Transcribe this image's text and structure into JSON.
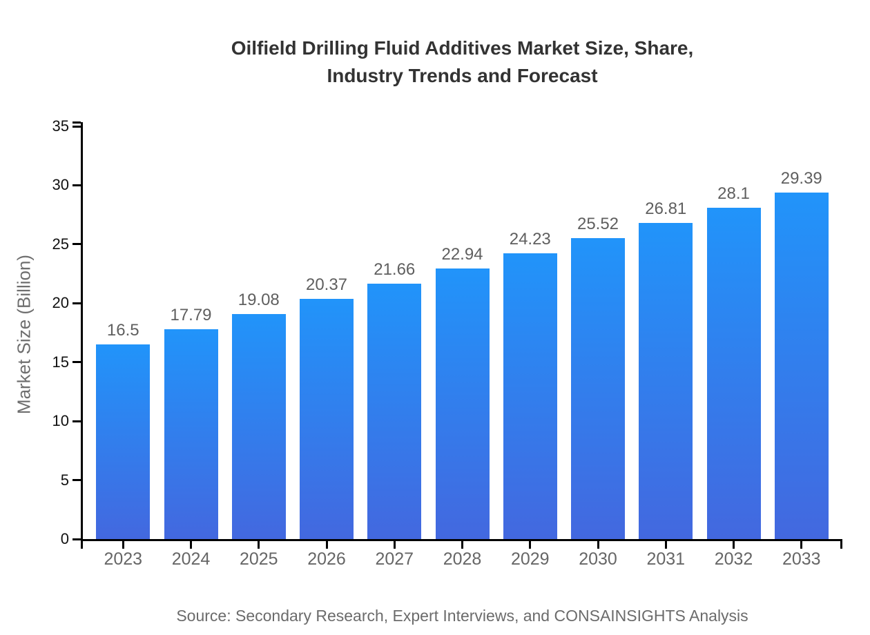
{
  "title": {
    "line1": "Oilfield Drilling Fluid Additives Market Size, Share,",
    "line2": "Industry Trends and Forecast"
  },
  "y_axis": {
    "label": "Market Size (Billion)"
  },
  "source": "Source: Secondary Research, Expert Interviews, and CONSAINSIGHTS Analysis",
  "chart_data": {
    "type": "bar",
    "title": "Oilfield Drilling Fluid Additives Market Size, Share, Industry Trends and Forecast",
    "categories": [
      "2023",
      "2024",
      "2025",
      "2026",
      "2027",
      "2028",
      "2029",
      "2030",
      "2031",
      "2032",
      "2033"
    ],
    "values": [
      16.5,
      17.79,
      19.08,
      20.37,
      21.66,
      22.94,
      24.23,
      25.52,
      26.81,
      28.1,
      29.39
    ],
    "value_labels": [
      "16.5",
      "17.79",
      "19.08",
      "20.37",
      "21.66",
      "22.94",
      "24.23",
      "25.52",
      "26.81",
      "28.1",
      "29.39"
    ],
    "xlabel": "",
    "ylabel": "Market Size (Billion)",
    "ylim": [
      0,
      35
    ],
    "yticks": [
      0,
      5,
      10,
      15,
      20,
      25,
      30,
      35
    ],
    "grid": false,
    "legend": null,
    "colors": {
      "bar_gradient_top": "#2194FA",
      "bar_gradient_bottom": "#4368DF",
      "axis": "#000000",
      "title_text": "#333333",
      "value_label_text": "#5f5f5f",
      "category_label_text": "#666666",
      "y_tick_text": "#111111",
      "source_text": "#6b6b6b",
      "background": "#ffffff"
    }
  }
}
